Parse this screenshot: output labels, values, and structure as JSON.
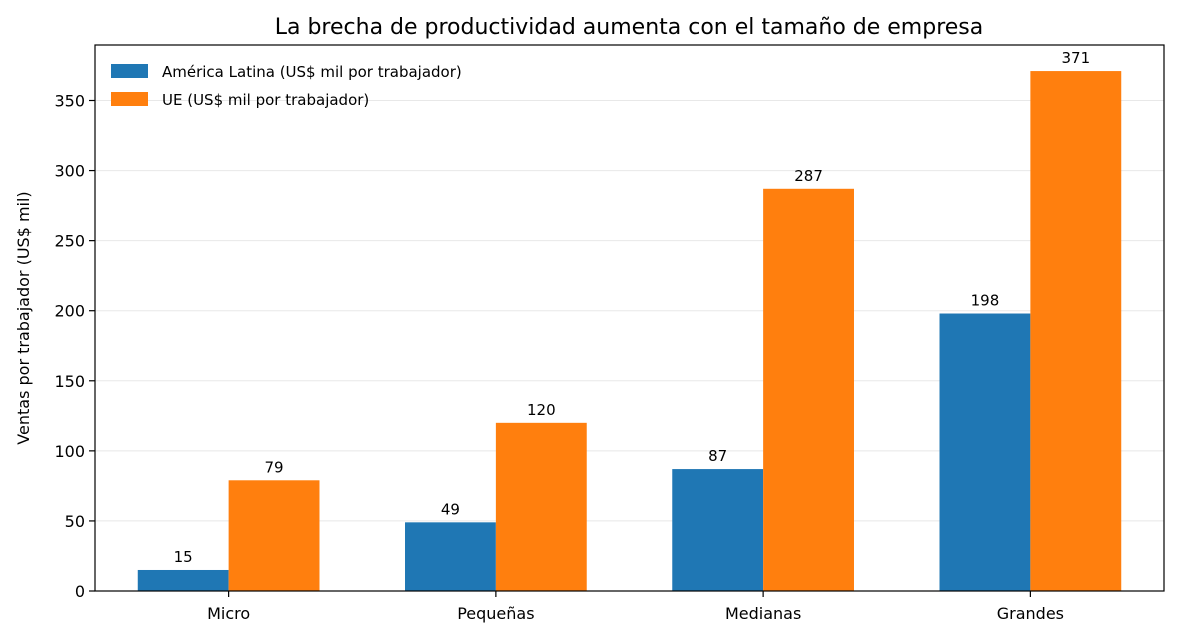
{
  "chart_data": {
    "type": "bar",
    "title": "La brecha de productividad aumenta con el tamaño de empresa",
    "xlabel": "",
    "ylabel": "Ventas por trabajador (US$ mil)",
    "categories": [
      "Micro",
      "Pequeñas",
      "Medianas",
      "Grandes"
    ],
    "series": [
      {
        "name": "América Latina (US$ mil por trabajador)",
        "values": [
          15,
          49,
          87,
          198
        ],
        "color": "#1f77b4"
      },
      {
        "name": "UE (US$ mil por trabajador)",
        "values": [
          79,
          120,
          287,
          371
        ],
        "color": "#ff7f0e"
      }
    ],
    "ylim": [
      0,
      389.6
    ],
    "yticks": [
      0,
      50,
      100,
      150,
      200,
      250,
      300,
      350
    ],
    "grid": "horizontal",
    "legend_position": "top-left",
    "data_labels": true
  }
}
